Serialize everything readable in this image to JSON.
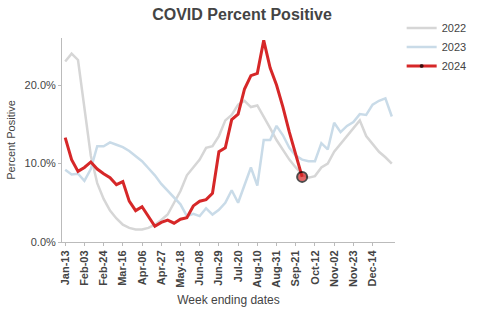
{
  "chart_data": {
    "type": "line",
    "title": "COVID Percent Positive",
    "x_label": "Week ending dates",
    "y_label": "Percent Positive",
    "categories": [
      "Jan-13",
      null,
      null,
      "Feb-03",
      null,
      null,
      "Feb-24",
      null,
      null,
      "Mar-16",
      null,
      null,
      "Apr-06",
      null,
      null,
      "Apr-27",
      null,
      null,
      "May-18",
      null,
      null,
      "Jun-08",
      null,
      null,
      "Jun-29",
      null,
      null,
      "Jul-20",
      null,
      null,
      "Aug-10",
      null,
      null,
      "Aug-31",
      null,
      null,
      "Sep-21",
      null,
      null,
      "Oct-12",
      null,
      null,
      "Nov-02",
      null,
      null,
      "Nov-23",
      null,
      null,
      "Dec-14",
      null,
      null,
      null
    ],
    "series": [
      {
        "name": "2022",
        "color": "#d6d6d6",
        "values": [
          23.0,
          24.0,
          23.2,
          17.0,
          11.0,
          7.5,
          5.5,
          4.0,
          3.0,
          2.2,
          1.8,
          1.6,
          1.6,
          1.8,
          2.2,
          2.8,
          3.5,
          5.0,
          6.5,
          8.5,
          9.5,
          10.5,
          12.0,
          12.2,
          13.5,
          15.5,
          16.2,
          17.5,
          18.0,
          17.2,
          17.4,
          16.0,
          14.5,
          13.0,
          11.8,
          10.5,
          9.5,
          8.6,
          8.2,
          8.4,
          9.5,
          10.0,
          11.5,
          12.5,
          13.5,
          14.5,
          15.5,
          13.5,
          12.5,
          11.5,
          10.8,
          10.0
        ]
      },
      {
        "name": "2023",
        "color": "#c9dbe8",
        "values": [
          9.2,
          8.6,
          8.7,
          7.8,
          9.3,
          12.2,
          12.2,
          12.7,
          12.4,
          12.1,
          11.6,
          11.0,
          10.3,
          9.4,
          8.5,
          7.4,
          6.5,
          5.7,
          4.8,
          3.3,
          3.6,
          3.3,
          4.3,
          3.5,
          4.1,
          5.0,
          6.6,
          5.0,
          7.2,
          9.5,
          7.2,
          13.0,
          13.0,
          14.8,
          13.6,
          12.0,
          11.0,
          10.5,
          10.3,
          10.3,
          12.6,
          11.8,
          15.2,
          14.0,
          14.8,
          15.3,
          16.3,
          16.2,
          17.5,
          18.0,
          18.3,
          16.0
        ]
      },
      {
        "name": "2024",
        "color": "#d62728",
        "marker": "last",
        "values": [
          13.3,
          10.5,
          9.0,
          9.5,
          10.2,
          9.3,
          8.7,
          8.2,
          7.3,
          7.7,
          5.2,
          4.0,
          4.5,
          3.3,
          2.0,
          2.5,
          2.8,
          2.4,
          2.9,
          3.1,
          4.6,
          5.2,
          5.4,
          6.2,
          11.5,
          12.0,
          15.6,
          16.3,
          19.5,
          21.2,
          21.5,
          25.7,
          22.2,
          20.0,
          17.2,
          14.0,
          11.2,
          8.3,
          null,
          null,
          null,
          null,
          null,
          null,
          null,
          null,
          null,
          null,
          null,
          null,
          null,
          null
        ]
      }
    ],
    "ylim": [
      0,
      26
    ],
    "yticks": [
      {
        "value": 0,
        "label": "0.0%"
      },
      {
        "value": 10,
        "label": "10.0%"
      },
      {
        "value": 20,
        "label": "20.0%"
      }
    ],
    "grid": false,
    "legend": "top right"
  }
}
